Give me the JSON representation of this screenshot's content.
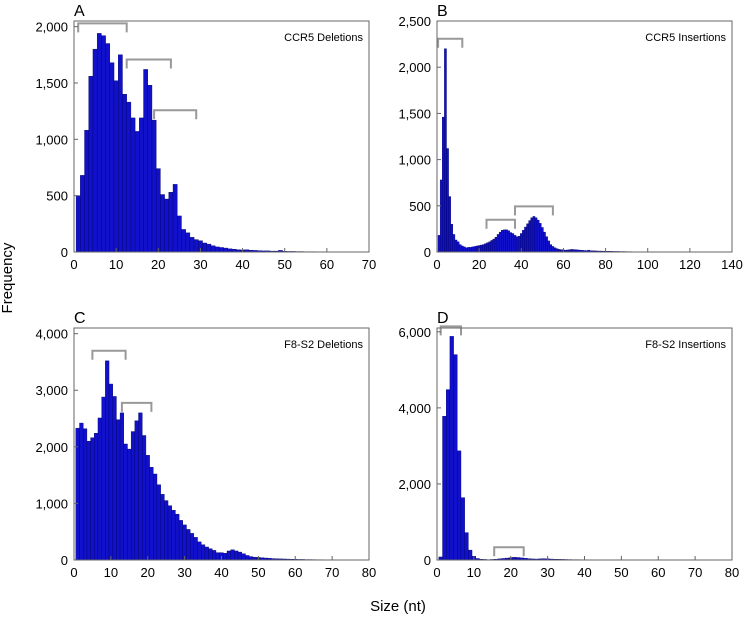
{
  "xlabel": "Size (nt)",
  "ylabel": "Frequency",
  "chart_data": [
    {
      "type": "bar",
      "panel": "A",
      "title": "CCR5 Deletions",
      "xlim": [
        0,
        70
      ],
      "ylim": [
        0,
        2050
      ],
      "xticks": [
        0,
        10,
        20,
        30,
        40,
        50,
        60,
        70
      ],
      "xtick_labels": [
        "0",
        "10",
        "20",
        "30",
        "40",
        "50",
        "60",
        "70"
      ],
      "yticks": [
        0,
        500,
        1000,
        1500,
        2000
      ],
      "ytick_labels": [
        "0",
        "500",
        "1,000",
        "1,500",
        "2,000"
      ],
      "bin_width": 1,
      "bin_start": 0.5,
      "values": [
        500,
        680,
        1080,
        1560,
        1800,
        1940,
        1920,
        1850,
        1680,
        1520,
        1750,
        1400,
        1330,
        1190,
        1070,
        1190,
        1620,
        1480,
        1170,
        740,
        510,
        470,
        530,
        600,
        320,
        200,
        170,
        130,
        110,
        100,
        80,
        70,
        55,
        45,
        40,
        35,
        28,
        25,
        20,
        18,
        20,
        16,
        14,
        12,
        10,
        10,
        8,
        8,
        14,
        6,
        5,
        5,
        4,
        4,
        3,
        3,
        3,
        2,
        2,
        2
      ],
      "brackets": [
        [
          1,
          12.5
        ],
        [
          12.5,
          23
        ],
        [
          19,
          29
        ]
      ]
    },
    {
      "type": "bar",
      "panel": "B",
      "title": "CCR5 Insertions",
      "xlim": [
        0,
        140
      ],
      "ylim": [
        0,
        2500
      ],
      "xticks": [
        0,
        20,
        40,
        60,
        80,
        100,
        120,
        140
      ],
      "xtick_labels": [
        "0",
        "20",
        "40",
        "60",
        "80",
        "100",
        "120",
        "140"
      ],
      "yticks": [
        0,
        500,
        1000,
        1500,
        2000,
        2500
      ],
      "ytick_labels": [
        "0",
        "500",
        "1,000",
        "1,500",
        "2,000",
        "2,500"
      ],
      "bin_width": 1,
      "bin_start": 0.5,
      "values": [
        180,
        780,
        1460,
        2200,
        1120,
        600,
        300,
        190,
        130,
        110,
        80,
        65,
        55,
        45,
        50,
        50,
        55,
        60,
        65,
        70,
        75,
        80,
        90,
        100,
        110,
        125,
        140,
        160,
        190,
        215,
        235,
        240,
        240,
        230,
        210,
        200,
        180,
        165,
        170,
        200,
        235,
        270,
        305,
        340,
        370,
        385,
        370,
        345,
        310,
        265,
        215,
        165,
        120,
        80,
        60,
        45,
        35,
        28,
        25,
        22,
        20,
        22,
        25,
        28,
        26,
        24,
        22,
        20,
        18,
        16,
        15,
        20,
        14,
        13,
        12,
        11,
        10,
        10,
        9,
        8,
        8,
        7,
        7,
        6,
        6,
        6,
        5,
        5,
        5,
        4,
        4,
        4,
        3,
        3,
        3,
        3,
        2,
        2,
        2,
        2,
        2,
        2,
        2,
        2,
        1,
        1,
        1,
        1,
        1,
        1,
        1,
        1,
        1,
        1,
        1,
        1,
        1,
        1,
        1,
        1,
        1,
        1,
        1,
        1,
        1,
        1,
        1,
        1,
        1,
        1
      ],
      "brackets": [
        [
          0.5,
          12
        ],
        [
          23.5,
          37
        ],
        [
          37,
          55
        ]
      ]
    },
    {
      "type": "bar",
      "panel": "C",
      "title": "F8-S2 Deletions",
      "xlim": [
        0,
        80
      ],
      "ylim": [
        0,
        4100
      ],
      "xticks": [
        0,
        10,
        20,
        30,
        40,
        50,
        60,
        70,
        80
      ],
      "xtick_labels": [
        "0",
        "10",
        "20",
        "30",
        "40",
        "50",
        "60",
        "70",
        "80"
      ],
      "yticks": [
        0,
        1000,
        2000,
        3000,
        4000
      ],
      "ytick_labels": [
        "0",
        "1,000",
        "2,000",
        "3,000",
        "4,000"
      ],
      "bin_width": 1,
      "bin_start": 0.5,
      "values": [
        2330,
        2420,
        2320,
        2100,
        2160,
        2240,
        2510,
        2880,
        3520,
        3110,
        2890,
        2480,
        2600,
        2050,
        1960,
        2270,
        2460,
        2600,
        2200,
        1850,
        1640,
        1520,
        1330,
        1160,
        1050,
        960,
        880,
        810,
        700,
        620,
        540,
        470,
        400,
        320,
        270,
        230,
        200,
        170,
        130,
        130,
        120,
        160,
        180,
        160,
        140,
        110,
        80,
        60,
        50,
        45,
        40,
        35,
        30,
        25,
        22,
        20,
        18,
        16,
        14,
        12,
        10,
        10,
        8,
        8,
        7,
        6,
        6,
        5,
        5,
        4,
        4,
        4,
        3,
        3,
        3,
        2,
        2,
        2,
        2
      ],
      "brackets": [
        [
          5,
          14
        ],
        [
          13,
          21
        ]
      ]
    },
    {
      "type": "bar",
      "panel": "D",
      "title": "F8-S2 Insertions",
      "xlim": [
        0,
        80
      ],
      "ylim": [
        0,
        6100
      ],
      "xticks": [
        0,
        10,
        20,
        30,
        40,
        50,
        60,
        70,
        80
      ],
      "xtick_labels": [
        "0",
        "10",
        "20",
        "30",
        "40",
        "50",
        "60",
        "70",
        "80"
      ],
      "yticks": [
        0,
        2000,
        4000,
        6000
      ],
      "ytick_labels": [
        "0",
        "2,000",
        "4,000",
        "6,000"
      ],
      "bin_width": 1,
      "bin_start": 0.5,
      "values": [
        80,
        3780,
        4480,
        5880,
        5400,
        2870,
        1640,
        720,
        260,
        100,
        40,
        20,
        15,
        10,
        15,
        20,
        30,
        40,
        50,
        60,
        70,
        65,
        55,
        45,
        35,
        28,
        25,
        30,
        35,
        30,
        25,
        20,
        18,
        16,
        14,
        12,
        10,
        10,
        9,
        8,
        7,
        6,
        6,
        5,
        5,
        4,
        4,
        3,
        3,
        3,
        2,
        2,
        2,
        2,
        2,
        1,
        1,
        1,
        1,
        1
      ],
      "brackets": [
        [
          1,
          6.5
        ],
        [
          15.5,
          23.5
        ]
      ]
    }
  ],
  "colors": {
    "bar_fill": "#1111cc",
    "bar_edge": "#000066",
    "bracket": "#999999",
    "axis": "#666666"
  }
}
